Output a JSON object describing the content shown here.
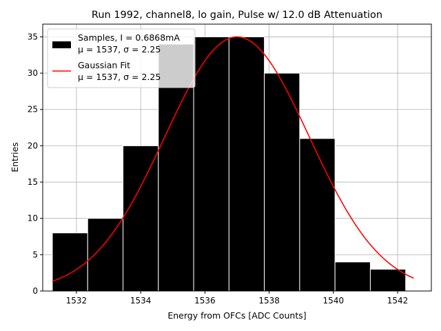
{
  "chart_data": {
    "type": "bar",
    "title": "Run 1992, channel8, lo gain, Pulse w/ 12.0 dB Attenuation",
    "xlabel": "Energy from OFCs [ADC Counts]",
    "ylabel": "Entries",
    "xlim": [
      1530.95,
      1543.05
    ],
    "ylim": [
      0,
      36.75
    ],
    "xticks": [
      1532,
      1534,
      1536,
      1538,
      1540,
      1542
    ],
    "yticks": [
      0,
      5,
      10,
      15,
      20,
      25,
      30,
      35
    ],
    "grid": true,
    "legend_position": "top-left",
    "bins": [
      {
        "x0": 1531.25,
        "x1": 1532.35,
        "count": 8
      },
      {
        "x0": 1532.35,
        "x1": 1533.45,
        "count": 10
      },
      {
        "x0": 1533.45,
        "x1": 1534.55,
        "count": 20
      },
      {
        "x0": 1534.55,
        "x1": 1535.65,
        "count": 34
      },
      {
        "x0": 1535.65,
        "x1": 1536.75,
        "count": 35
      },
      {
        "x0": 1536.75,
        "x1": 1537.85,
        "count": 35
      },
      {
        "x0": 1537.85,
        "x1": 1538.95,
        "count": 30
      },
      {
        "x0": 1538.95,
        "x1": 1540.05,
        "count": 21
      },
      {
        "x0": 1540.05,
        "x1": 1541.15,
        "count": 4
      },
      {
        "x0": 1541.15,
        "x1": 1542.25,
        "count": 3
      }
    ],
    "fit": {
      "type": "gaussian",
      "amplitude": 35,
      "mu": 1537,
      "sigma": 2.25,
      "x_range": [
        1531.25,
        1542.5
      ]
    },
    "series": [
      {
        "name": "Samples, I = 0.6868mA",
        "sublabel": "μ = 1537, σ = 2.25",
        "color": "#000000"
      },
      {
        "name": "Gaussian Fit",
        "sublabel": "μ = 1537, σ = 2.25",
        "color": "#ff0000"
      }
    ],
    "colors": {
      "bar_edge": "#ffffff",
      "grid": "#b0b0b0",
      "fit": "#ff0000",
      "bar": "#000000"
    }
  }
}
